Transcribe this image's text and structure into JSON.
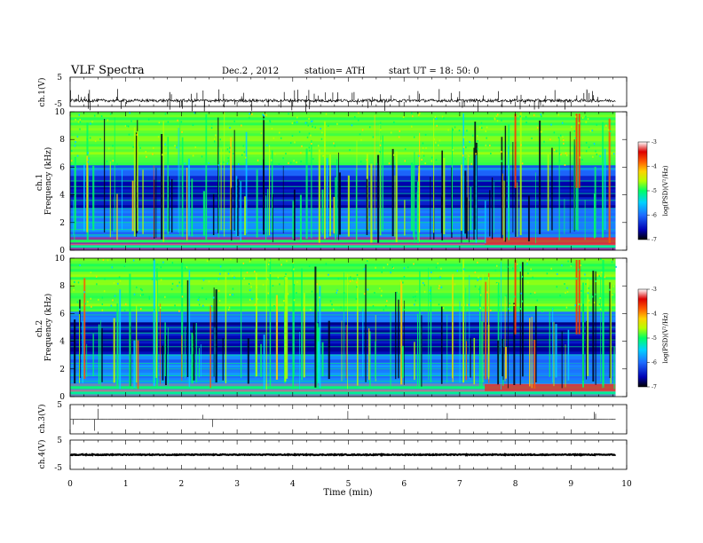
{
  "header": {
    "title": "VLF  Spectra",
    "date": "Dec.2  , 2012",
    "station": "station= ATH",
    "start": "start  UT  =    18: 50: 0"
  },
  "colors": {
    "axes": "#000000",
    "background": "#ffffff"
  },
  "chart_data": [
    {
      "type": "line",
      "id": "ch1_wave",
      "ylabel": "ch.1(V)",
      "ylim": [
        -5,
        5
      ],
      "yticks": [
        5,
        -5
      ],
      "description_of_signal": "noisy baseline near -3 V with spikes",
      "baseline": -3
    },
    {
      "type": "heatmap",
      "id": "ch1_spec",
      "ylabel": "ch.1\nFrequency  (kHz)",
      "ylabel_lines": [
        "ch.1",
        "Frequency  (kHz)"
      ],
      "ylim": [
        0,
        10
      ],
      "yticks": [
        0,
        2,
        4,
        6,
        8,
        10
      ],
      "colorbar": {
        "label": "log(PSD)(V²/Hz)",
        "range": [
          -7,
          -3
        ],
        "ticks": [
          -3,
          -4,
          -5,
          -6,
          -7
        ],
        "colormap": [
          "#000000",
          "#0000b4",
          "#1e6cff",
          "#00d2ff",
          "#00ff64",
          "#b4ff00",
          "#ffd200",
          "#ff5a00",
          "#dc0000",
          "#ffffff"
        ]
      }
    },
    {
      "type": "heatmap",
      "id": "ch2_spec",
      "ylabel": "ch.2\nFrequency  (kHz)",
      "ylabel_lines": [
        "ch.2",
        "Frequency  (kHz)"
      ],
      "ylim": [
        0,
        10
      ],
      "yticks": [
        0,
        2,
        4,
        6,
        8,
        10
      ],
      "colorbar": {
        "label": "log(PSD)(V²/Hz)",
        "range": [
          -7,
          -3
        ],
        "ticks": [
          -3,
          -4,
          -5,
          -6,
          -7
        ]
      }
    },
    {
      "type": "line",
      "id": "ch3_wave",
      "ylabel": "ch.3(V)",
      "ylim": [
        -5,
        5
      ],
      "yticks": [
        5
      ],
      "baseline": 0
    },
    {
      "type": "line",
      "id": "ch4_wave",
      "ylabel": "ch.4(V)",
      "ylim": [
        -5,
        5
      ],
      "yticks": [
        5,
        -5
      ],
      "baseline": 0
    }
  ],
  "xaxis": {
    "label": "Time  (min)",
    "xlim": [
      0,
      10
    ],
    "ticks": [
      0,
      1,
      2,
      3,
      4,
      5,
      6,
      7,
      8,
      9,
      10
    ],
    "data_end": 9.8
  }
}
